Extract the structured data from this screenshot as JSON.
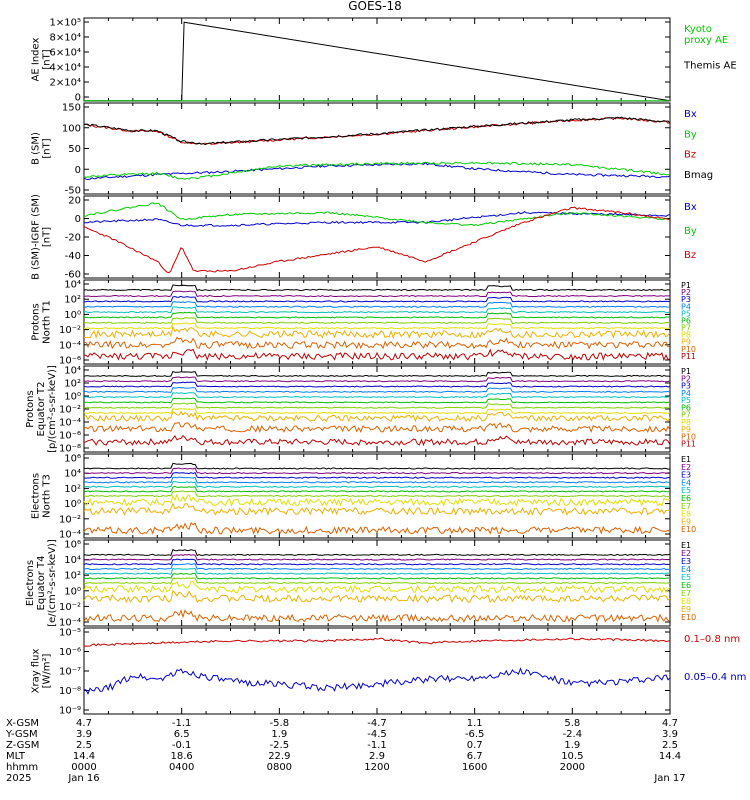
{
  "title": "GOES-18",
  "colors": {
    "black": "#000000",
    "red": "#cc0000",
    "green": "#00cc00",
    "blue": "#0000cc",
    "kyoto": "#00cc00",
    "ladder": [
      "#000000",
      "#800080",
      "#0000cc",
      "#0080ff",
      "#00c0c0",
      "#00c000",
      "#80d000",
      "#e0e000",
      "#f0b000",
      "#e06000",
      "#c00000"
    ]
  },
  "chart_data": [
    {
      "type": "line",
      "name": "ae",
      "ylabel": "AE Index\n[nT]",
      "yticks": [
        "1×10⁵",
        "8×10⁴",
        "6×10⁴",
        "4×10⁴",
        "2×10⁴",
        "0"
      ],
      "ylim": [
        0,
        100000
      ],
      "legend": [
        {
          "text": "Kyoto\nproxy AE",
          "color": "kyoto"
        },
        {
          "text": "Themis AE",
          "color": "black"
        }
      ],
      "x": [
        0,
        4,
        4.1,
        24
      ],
      "values": [
        300,
        300,
        95000,
        300
      ],
      "grid": false
    },
    {
      "type": "line",
      "name": "bsm",
      "ylabel": "B (SM)\n[nT]",
      "yticks": [
        "150",
        "100",
        "50",
        "0",
        "-50"
      ],
      "ylim": [
        -60,
        150
      ],
      "legend": [
        {
          "text": "Bx",
          "color": "blue"
        },
        {
          "text": "By",
          "color": "green"
        },
        {
          "text": "Bz",
          "color": "red"
        },
        {
          "text": "Bmag",
          "color": "black"
        }
      ],
      "series": [
        {
          "name": "Bx",
          "color": "blue",
          "x": [
            0,
            3,
            6,
            10,
            14,
            16,
            20,
            24
          ],
          "values": [
            -25,
            -15,
            -8,
            5,
            10,
            -2,
            -15,
            -20
          ]
        },
        {
          "name": "By",
          "color": "green",
          "x": [
            0,
            3,
            4,
            5,
            8,
            12,
            16,
            20,
            24
          ],
          "values": [
            -20,
            -12,
            -25,
            -20,
            5,
            10,
            12,
            8,
            -15
          ]
        },
        {
          "name": "Bz",
          "color": "red",
          "x": [
            0,
            2,
            3,
            4,
            5,
            8,
            12,
            16,
            20,
            22,
            24
          ],
          "values": [
            100,
            85,
            85,
            60,
            55,
            65,
            78,
            95,
            110,
            115,
            105
          ]
        },
        {
          "name": "Bmag",
          "color": "black",
          "x": [
            0,
            2,
            3,
            4,
            5,
            8,
            12,
            16,
            20,
            22,
            24
          ],
          "values": [
            101,
            86,
            86,
            61,
            56,
            66,
            79,
            96,
            111,
            116,
            106
          ]
        }
      ],
      "grid": false
    },
    {
      "type": "line",
      "name": "bres",
      "ylabel": "B (SM)-IGRF (SM)\n[nT]",
      "yticks": [
        "20",
        "0",
        "-20",
        "-40",
        "-60"
      ],
      "ylim": [
        -62,
        22
      ],
      "legend": [
        {
          "text": "Bx",
          "color": "blue"
        },
        {
          "text": "By",
          "color": "green"
        },
        {
          "text": "Bz",
          "color": "red"
        }
      ],
      "series": [
        {
          "name": "Bx",
          "color": "blue",
          "x": [
            0,
            3,
            4,
            6,
            10,
            14,
            18,
            24
          ],
          "values": [
            -5,
            -2,
            -8,
            -8,
            -5,
            -5,
            5,
            2
          ]
        },
        {
          "name": "By",
          "color": "green",
          "x": [
            0,
            3,
            4,
            6,
            10,
            14,
            16,
            20,
            24
          ],
          "values": [
            2,
            15,
            -2,
            3,
            5,
            -5,
            -8,
            5,
            -2
          ]
        },
        {
          "name": "Bz",
          "color": "red",
          "x": [
            0,
            1,
            3,
            3.5,
            4,
            4.5,
            6,
            8,
            12,
            14,
            16,
            18,
            20,
            22,
            24
          ],
          "values": [
            -10,
            -20,
            -45,
            -58,
            -30,
            -55,
            -55,
            -45,
            -30,
            -45,
            -25,
            -5,
            10,
            5,
            -2
          ]
        }
      ],
      "grid": false
    },
    {
      "type": "line",
      "name": "p1",
      "ylabel": "Protons\nNorth T1",
      "yticks": [
        "10⁴",
        "10²",
        "10⁰",
        "10⁻²",
        "10⁻⁴",
        "10⁻⁶"
      ],
      "ylim": [
        -6.5,
        4.5
      ],
      "legend": [
        "P1",
        "P2",
        "P3",
        "P4",
        "P5",
        "P6",
        "P7",
        "P8",
        "P9",
        "P10",
        "P11"
      ],
      "series_levels": [
        3.2,
        2.4,
        1.7,
        1.0,
        0.3,
        -0.4,
        -1.1,
        -1.8,
        -2.6,
        -4.0,
        -5.5
      ],
      "grid": false
    },
    {
      "type": "line",
      "name": "p2",
      "ylabel": "Protons\nEquator T2\n[p/(cm²-s-sr-keV)]",
      "yticks": [
        "10⁴",
        "10²",
        "10⁰",
        "10⁻²",
        "10⁻⁴",
        "10⁻⁶",
        "10⁻⁸"
      ],
      "ylim": [
        -8.5,
        4.5
      ],
      "legend": [
        "P1",
        "P2",
        "P3",
        "P4",
        "P5",
        "P6",
        "P7",
        "P8",
        "P9",
        "P10",
        "P11"
      ],
      "series_levels": [
        3.0,
        2.2,
        1.4,
        0.6,
        -0.2,
        -1.0,
        -1.8,
        -2.6,
        -3.4,
        -5.0,
        -7.0
      ],
      "grid": false
    },
    {
      "type": "line",
      "name": "e1",
      "ylabel": "Electrons\nNorth T3",
      "yticks": [
        "10⁶",
        "10⁴",
        "10²",
        "10⁰",
        "10⁻²",
        "10⁻⁴"
      ],
      "ylim": [
        -4.5,
        6.5
      ],
      "legend": [
        "E1",
        "E2",
        "E3",
        "E4",
        "E5",
        "E6",
        "E7",
        "E8",
        "E9",
        "E10"
      ],
      "series_levels": [
        4.6,
        4.0,
        3.4,
        2.8,
        2.2,
        1.6,
        1.0,
        0.2,
        -1.0,
        -3.5
      ],
      "grid": false
    },
    {
      "type": "line",
      "name": "e2",
      "ylabel": "Electrons\nEquator T4\n[e/(cm²-s-sr-keV)]",
      "yticks": [
        "10⁶",
        "10⁴",
        "10²",
        "10⁰",
        "10⁻²",
        "10⁻⁴"
      ],
      "ylim": [
        -4.5,
        6.5
      ],
      "legend": [
        "E1",
        "E2",
        "E3",
        "E4",
        "E5",
        "E6",
        "E7",
        "E8",
        "E9",
        "E10"
      ],
      "series_levels": [
        4.6,
        4.0,
        3.4,
        2.8,
        2.2,
        1.6,
        1.0,
        0.2,
        -1.0,
        -3.5
      ],
      "grid": false
    },
    {
      "type": "line",
      "name": "xray",
      "ylabel": "Xray flux\n[W/m²]",
      "yticks": [
        "10⁻⁵",
        "10⁻⁶",
        "10⁻⁷",
        "10⁻⁸",
        "10⁻⁹"
      ],
      "ylim": [
        -9,
        -5
      ],
      "legend": [
        {
          "text": "0.1–0.8 nm",
          "color": "red"
        },
        {
          "text": "0.05–0.4 nm",
          "color": "blue"
        }
      ],
      "series": [
        {
          "name": "0.1–0.8 nm",
          "color": "red",
          "x": [
            0,
            3,
            6,
            10,
            12,
            14,
            16,
            18,
            20,
            24
          ],
          "values": [
            -5.8,
            -5.7,
            -5.6,
            -5.6,
            -5.5,
            -5.7,
            -5.6,
            -5.55,
            -5.5,
            -5.6
          ]
        },
        {
          "name": "0.05–0.4 nm",
          "color": "blue",
          "x": [
            0,
            1,
            2,
            3,
            4,
            6,
            8,
            10,
            12,
            14,
            16,
            18,
            20,
            22,
            24
          ],
          "values": [
            -8.0,
            -7.8,
            -7.2,
            -7.4,
            -7.0,
            -7.5,
            -7.6,
            -7.8,
            -7.6,
            -7.4,
            -7.3,
            -7.0,
            -7.6,
            -7.5,
            -7.3
          ]
        }
      ],
      "grid": false
    }
  ],
  "xaxis": {
    "rows": [
      "X-GSM",
      "Y-GSM",
      "Z-GSM",
      "MLT",
      "hhmm",
      "2025"
    ],
    "columns": [
      [
        "4.7",
        "3.9",
        "2.5",
        "14.4",
        "0000",
        "Jan 16"
      ],
      [
        "-1.1",
        "6.5",
        "-0.1",
        "18.6",
        "0400",
        ""
      ],
      [
        "-5.8",
        "1.9",
        "-2.5",
        "22.9",
        "0800",
        ""
      ],
      [
        "-4.7",
        "-4.5",
        "-1.1",
        "2.9",
        "1200",
        ""
      ],
      [
        "1.1",
        "-6.5",
        "0.7",
        "6.7",
        "1600",
        ""
      ],
      [
        "5.8",
        "-2.4",
        "1.9",
        "10.5",
        "2000",
        ""
      ],
      [
        "4.7",
        "3.9",
        "2.5",
        "14.4",
        "",
        "Jan 17"
      ]
    ],
    "xlim": [
      0,
      24
    ]
  }
}
